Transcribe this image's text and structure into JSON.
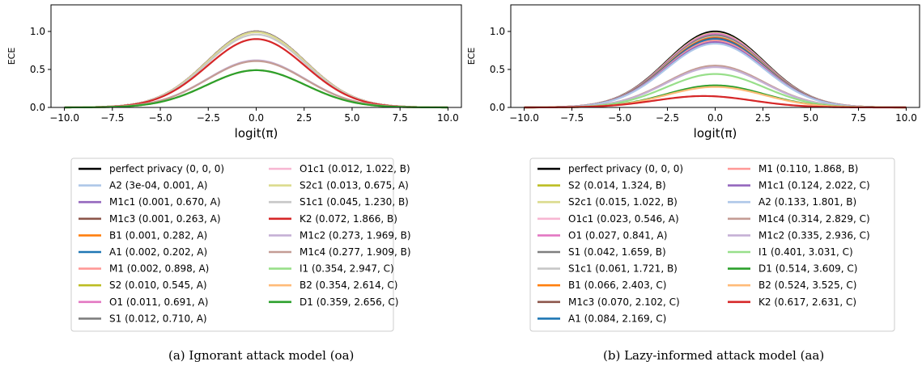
{
  "chart_data": [
    {
      "type": "line",
      "caption": "(a) Ignorant attack model (oa)",
      "xlabel": "logit(π)",
      "ylabel": "ECE",
      "xlim": [
        -10.7,
        10.7
      ],
      "ylim": [
        0,
        1.35
      ],
      "xticks": [
        -10.0,
        -7.5,
        -5.0,
        -2.5,
        0.0,
        2.5,
        5.0,
        7.5,
        10.0
      ],
      "xtick_labels": [
        "−10.0",
        "−7.5",
        "−5.0",
        "−2.5",
        "0.0",
        "2.5",
        "5.0",
        "7.5",
        "10.0"
      ],
      "yticks": [
        0.0,
        0.5,
        1.0
      ],
      "ytick_labels": [
        "0.0",
        "0.5",
        "1.0"
      ],
      "grid": false,
      "legend_position": "below",
      "legend_columns": 2,
      "series": [
        {
          "name": "perfect privacy (0, 0, 0)",
          "color": "#000000",
          "peak": 1.0,
          "center": 0.0
        },
        {
          "name": "A2 (3e-04, 0.001, A)",
          "color": "#aec7e8",
          "peak": 1.0,
          "center": 0.0
        },
        {
          "name": "M1c1 (0.001, 0.670, A)",
          "color": "#9467bd",
          "peak": 1.0,
          "center": 0.0
        },
        {
          "name": "M1c3 (0.001, 0.263, A)",
          "color": "#8c564b",
          "peak": 1.0,
          "center": 0.0
        },
        {
          "name": "B1 (0.001, 0.282, A)",
          "color": "#ff7f0e",
          "peak": 1.0,
          "center": 0.0
        },
        {
          "name": "A1 (0.002, 0.202, A)",
          "color": "#1f77b4",
          "peak": 1.0,
          "center": 0.0
        },
        {
          "name": "M1 (0.002, 0.898, A)",
          "color": "#ff9896",
          "peak": 1.0,
          "center": 0.0
        },
        {
          "name": "S2 (0.010, 0.545, A)",
          "color": "#bcbd22",
          "peak": 1.0,
          "center": 0.0
        },
        {
          "name": "O1 (0.011, 0.691, A)",
          "color": "#e377c2",
          "peak": 1.0,
          "center": 0.0
        },
        {
          "name": "S1 (0.012, 0.710, A)",
          "color": "#7f7f7f",
          "peak": 1.0,
          "center": 0.0
        },
        {
          "name": "O1c1 (0.012, 1.022, B)",
          "color": "#f7b6d2",
          "peak": 0.99,
          "center": 0.0
        },
        {
          "name": "S2c1 (0.013, 0.675, A)",
          "color": "#dbdb8d",
          "peak": 0.99,
          "center": 0.0
        },
        {
          "name": "S1c1 (0.045, 1.230, B)",
          "color": "#c7c7c7",
          "peak": 0.96,
          "center": 0.0
        },
        {
          "name": "K2 (0.072, 1.866, B)",
          "color": "#d62728",
          "peak": 0.9,
          "center": 0.0
        },
        {
          "name": "M1c2 (0.273, 1.969, B)",
          "color": "#c5b0d5",
          "peak": 0.62,
          "center": 0.0
        },
        {
          "name": "M1c4 (0.277, 1.909, B)",
          "color": "#c49c94",
          "peak": 0.61,
          "center": 0.0
        },
        {
          "name": "I1 (0.354, 2.947, C)",
          "color": "#98df8a",
          "peak": 0.49,
          "center": 0.0
        },
        {
          "name": "B2 (0.354, 2.614, C)",
          "color": "#ffbb78",
          "peak": 0.49,
          "center": 0.0
        },
        {
          "name": "D1 (0.359, 2.656, C)",
          "color": "#2ca02c",
          "peak": 0.49,
          "center": 0.0
        }
      ]
    },
    {
      "type": "line",
      "caption": "(b) Lazy-informed attack model (aa)",
      "xlabel": "logit(π)",
      "ylabel": "ECE",
      "xlim": [
        -10.7,
        10.7
      ],
      "ylim": [
        0,
        1.35
      ],
      "xticks": [
        -10.0,
        -7.5,
        -5.0,
        -2.5,
        0.0,
        2.5,
        5.0,
        7.5,
        10.0
      ],
      "xtick_labels": [
        "−10.0",
        "−7.5",
        "−5.0",
        "−2.5",
        "0.0",
        "2.5",
        "5.0",
        "7.5",
        "10.0"
      ],
      "yticks": [
        0.0,
        0.5,
        1.0
      ],
      "ytick_labels": [
        "0.0",
        "0.5",
        "1.0"
      ],
      "grid": false,
      "legend_position": "below",
      "legend_columns": 2,
      "series": [
        {
          "name": "perfect privacy (0, 0, 0)",
          "color": "#000000",
          "peak": 1.0,
          "center": 0.0
        },
        {
          "name": "S2 (0.014, 1.324, B)",
          "color": "#bcbd22",
          "peak": 0.98,
          "center": 0.0
        },
        {
          "name": "S2c1 (0.015, 1.022, B)",
          "color": "#dbdb8d",
          "peak": 0.98,
          "center": 0.0
        },
        {
          "name": "O1c1 (0.023, 0.546, A)",
          "color": "#f7b6d2",
          "peak": 0.97,
          "center": 0.0
        },
        {
          "name": "O1 (0.027, 0.841, A)",
          "color": "#e377c2",
          "peak": 0.97,
          "center": 0.0
        },
        {
          "name": "S1 (0.042, 1.659, B)",
          "color": "#7f7f7f",
          "peak": 0.95,
          "center": 0.0
        },
        {
          "name": "S1c1 (0.061, 1.721, B)",
          "color": "#c7c7c7",
          "peak": 0.93,
          "center": 0.0
        },
        {
          "name": "B1 (0.066, 2.403, C)",
          "color": "#ff7f0e",
          "peak": 0.92,
          "center": 0.0
        },
        {
          "name": "M1c3 (0.070, 2.102, C)",
          "color": "#8c564b",
          "peak": 0.91,
          "center": 0.0
        },
        {
          "name": "A1 (0.084, 2.169, C)",
          "color": "#1f77b4",
          "peak": 0.9,
          "center": 0.0
        },
        {
          "name": "M1 (0.110, 1.868, B)",
          "color": "#ff9896",
          "peak": 0.88,
          "center": 0.0
        },
        {
          "name": "M1c1 (0.124, 2.022, C)",
          "color": "#9467bd",
          "peak": 0.86,
          "center": 0.0
        },
        {
          "name": "A2 (0.133, 1.801, B)",
          "color": "#aec7e8",
          "peak": 0.84,
          "center": 0.0
        },
        {
          "name": "M1c4 (0.314, 2.829, C)",
          "color": "#c49c94",
          "peak": 0.55,
          "center": 0.0
        },
        {
          "name": "M1c2 (0.335, 2.936, C)",
          "color": "#c5b0d5",
          "peak": 0.53,
          "center": 0.0
        },
        {
          "name": "I1 (0.401, 3.031, C)",
          "color": "#98df8a",
          "peak": 0.44,
          "center": 0.0
        },
        {
          "name": "D1 (0.514, 3.609, C)",
          "color": "#2ca02c",
          "peak": 0.29,
          "center": 0.0
        },
        {
          "name": "B2 (0.524, 3.525, C)",
          "color": "#ffbb78",
          "peak": 0.27,
          "center": 0.0
        },
        {
          "name": "K2 (0.617, 2.631, C)",
          "color": "#d62728",
          "peak": 0.15,
          "center": -0.6
        }
      ]
    }
  ]
}
